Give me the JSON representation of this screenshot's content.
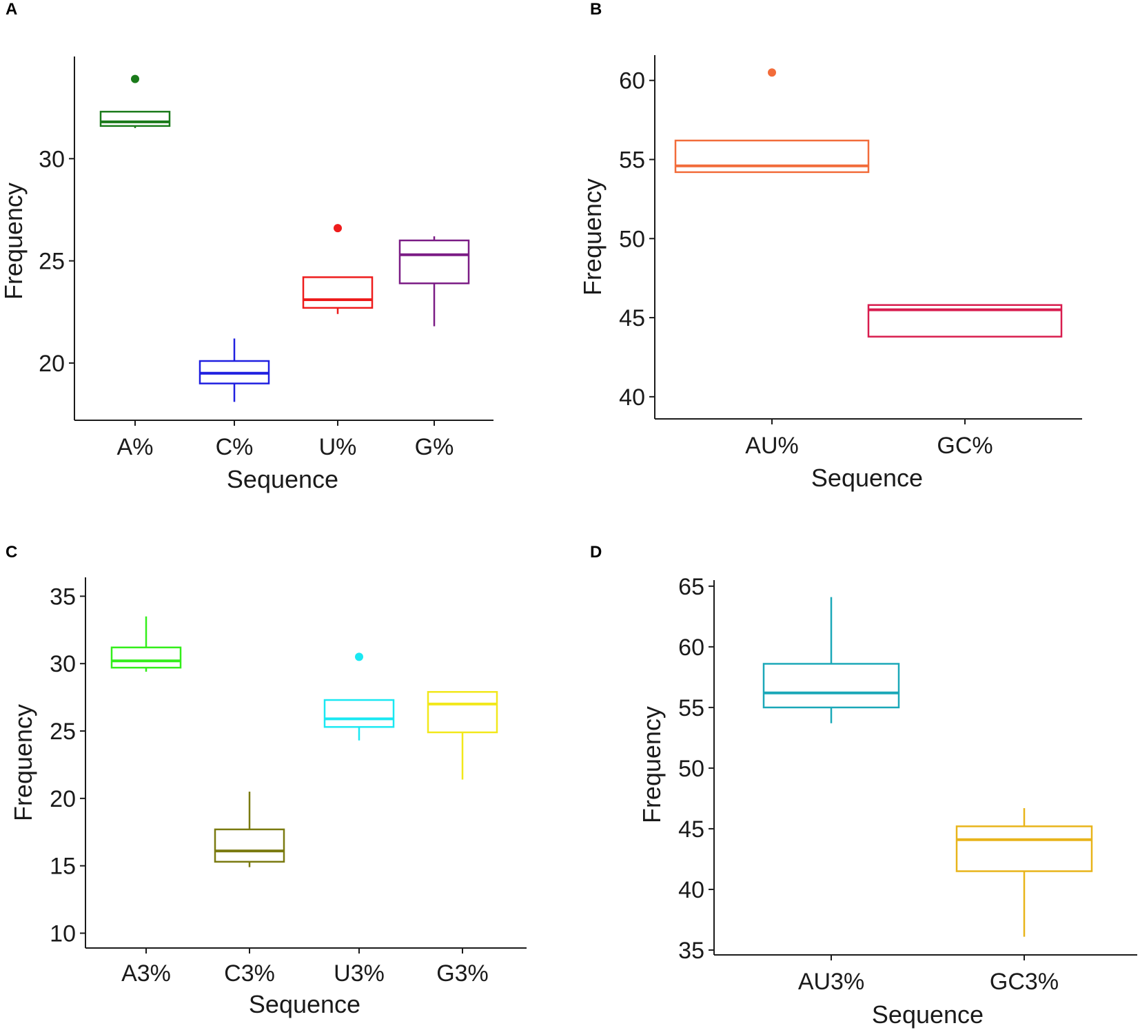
{
  "chart_data": [
    {
      "panel": "A",
      "type": "box",
      "xlabel": "Sequence",
      "ylabel": "Frequency",
      "ylim": [
        17.2,
        35.0
      ],
      "yticks": [
        20,
        25,
        30
      ],
      "categories": [
        "A%",
        "C%",
        "U%",
        "G%"
      ],
      "boxes": [
        {
          "name": "A%",
          "color": "#1a7a1a",
          "min": 31.5,
          "q1": 31.6,
          "median": 31.8,
          "q3": 32.3,
          "max": 32.3,
          "outliers": [
            33.9
          ]
        },
        {
          "name": "C%",
          "color": "#1f1fe0",
          "min": 18.1,
          "q1": 19.0,
          "median": 19.5,
          "q3": 20.1,
          "max": 21.2,
          "outliers": []
        },
        {
          "name": "U%",
          "color": "#ee1c1c",
          "min": 22.4,
          "q1": 22.7,
          "median": 23.1,
          "q3": 24.2,
          "max": 24.2,
          "outliers": [
            26.6
          ]
        },
        {
          "name": "G%",
          "color": "#7b1c85",
          "min": 21.8,
          "q1": 23.9,
          "median": 25.3,
          "q3": 26.0,
          "max": 26.2,
          "outliers": []
        }
      ]
    },
    {
      "panel": "B",
      "type": "box",
      "xlabel": "Sequence",
      "ylabel": "Frequency",
      "ylim": [
        38.6,
        61.6
      ],
      "yticks": [
        40,
        45,
        50,
        55,
        60
      ],
      "categories": [
        "AU%",
        "GC%"
      ],
      "boxes": [
        {
          "name": "AU%",
          "color": "#f26c3a",
          "min": 54.2,
          "q1": 54.2,
          "median": 54.6,
          "q3": 56.2,
          "max": 56.2,
          "outliers": [
            60.5
          ]
        },
        {
          "name": "GC%",
          "color": "#d81c4e",
          "min": 43.8,
          "q1": 43.8,
          "median": 45.5,
          "q3": 45.8,
          "max": 45.8,
          "outliers": []
        }
      ]
    },
    {
      "panel": "C",
      "type": "box",
      "xlabel": "Sequence",
      "ylabel": "Frequency",
      "ylim": [
        8.9,
        36.4
      ],
      "yticks": [
        10,
        15,
        20,
        25,
        30,
        35
      ],
      "categories": [
        "A3%",
        "C3%",
        "U3%",
        "G3%"
      ],
      "boxes": [
        {
          "name": "A3%",
          "color": "#33ee1a",
          "min": 29.4,
          "q1": 29.7,
          "median": 30.2,
          "q3": 31.2,
          "max": 33.5,
          "outliers": []
        },
        {
          "name": "C3%",
          "color": "#7a7a10",
          "min": 14.9,
          "q1": 15.3,
          "median": 16.1,
          "q3": 17.7,
          "max": 20.5,
          "outliers": []
        },
        {
          "name": "U3%",
          "color": "#1ae8f2",
          "min": 24.3,
          "q1": 25.3,
          "median": 25.9,
          "q3": 27.3,
          "max": 27.3,
          "outliers": [
            30.5
          ]
        },
        {
          "name": "G3%",
          "color": "#f2e81a",
          "min": 21.4,
          "q1": 24.9,
          "median": 27.0,
          "q3": 27.9,
          "max": 27.9,
          "outliers": []
        }
      ]
    },
    {
      "panel": "D",
      "type": "box",
      "xlabel": "Sequence",
      "ylabel": "Frequency",
      "ylim": [
        34.6,
        65.5
      ],
      "yticks": [
        35,
        40,
        45,
        50,
        55,
        60,
        65
      ],
      "categories": [
        "AU3%",
        "GC3%"
      ],
      "boxes": [
        {
          "name": "AU3%",
          "color": "#1ba8b8",
          "min": 53.7,
          "q1": 55.0,
          "median": 56.2,
          "q3": 58.6,
          "max": 64.1,
          "outliers": []
        },
        {
          "name": "GC3%",
          "color": "#e8b41a",
          "min": 36.1,
          "q1": 41.5,
          "median": 44.1,
          "q3": 45.2,
          "max": 46.7,
          "outliers": []
        }
      ]
    }
  ]
}
